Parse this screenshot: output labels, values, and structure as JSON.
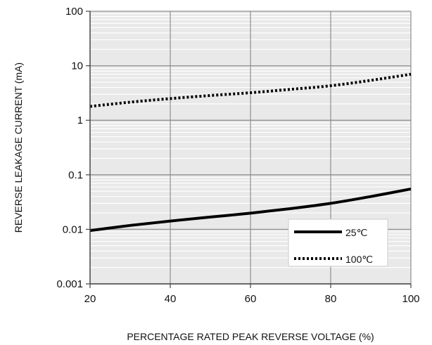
{
  "chart_data": {
    "type": "line",
    "title": "",
    "xlabel": "PERCENTAGE RATED PEAK REVERSE VOLTAGE (%)",
    "ylabel": "REVERSE LEAKAGE CURRENT (mA)",
    "x_scale": "linear",
    "y_scale": "log",
    "xlim": [
      20,
      100
    ],
    "ylim": [
      0.001,
      100
    ],
    "x_ticks": [
      20,
      40,
      60,
      80,
      100
    ],
    "x_tick_labels": [
      "20",
      "40",
      "60",
      "80",
      "100"
    ],
    "y_ticks": [
      0.001,
      0.01,
      0.1,
      1,
      10,
      100
    ],
    "y_tick_labels": [
      "0.001",
      "0.01",
      "0.1",
      "1",
      "10",
      "100"
    ],
    "grid": true,
    "legend_position": "bottom-right",
    "series": [
      {
        "name": "25℃",
        "style": "solid",
        "color": "#000000",
        "x": [
          20,
          30,
          40,
          50,
          60,
          70,
          80,
          90,
          100
        ],
        "y": [
          0.0095,
          0.0118,
          0.0142,
          0.0168,
          0.0198,
          0.024,
          0.03,
          0.04,
          0.055
        ]
      },
      {
        "name": "100℃",
        "style": "dotted",
        "color": "#000000",
        "x": [
          20,
          30,
          40,
          50,
          60,
          70,
          80,
          90,
          100
        ],
        "y": [
          1.8,
          2.15,
          2.5,
          2.85,
          3.2,
          3.7,
          4.3,
          5.4,
          7.0
        ]
      }
    ]
  },
  "colors": {
    "plot_background": "#e9e9e9",
    "major_grid": "#8f8f8f",
    "minor_grid": "#ffffff",
    "axis": "#444444",
    "text": "#111111"
  }
}
